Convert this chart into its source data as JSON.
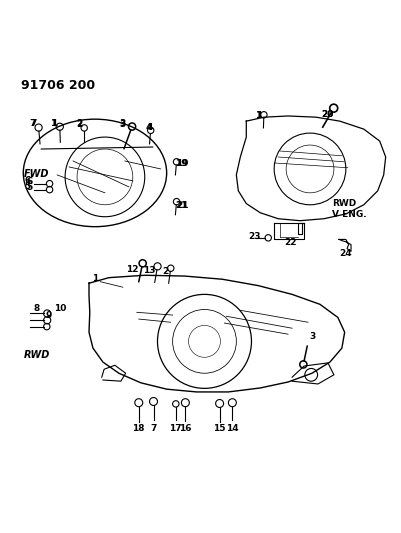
{
  "title": "91706 200",
  "bg_color": "#ffffff",
  "line_color": "#000000",
  "figsize": [
    4.01,
    5.33
  ],
  "dpi": 100,
  "labels": {
    "header": "91706 200",
    "fwd": "FWD",
    "rwd_top": "RWD\nV ENG.",
    "rwd_bottom": "RWD"
  }
}
